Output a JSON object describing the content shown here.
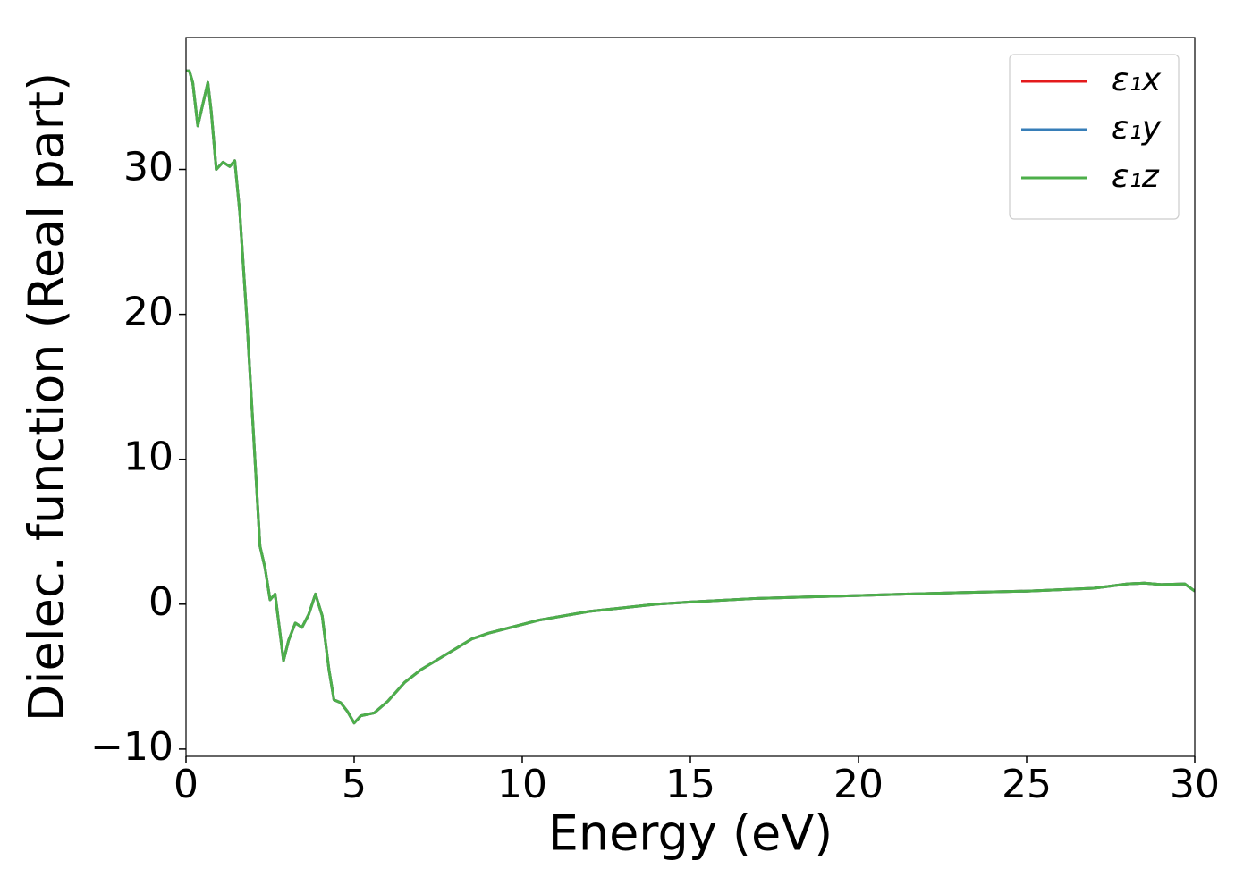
{
  "chart_data": {
    "type": "line",
    "xlabel": "Energy (eV)",
    "ylabel": "Dielec. function (Real part)",
    "x": [
      0,
      0.1,
      0.2,
      0.35,
      0.5,
      0.65,
      0.75,
      0.9,
      1.1,
      1.3,
      1.45,
      1.6,
      1.8,
      2.0,
      2.2,
      2.35,
      2.5,
      2.65,
      2.9,
      3.05,
      3.25,
      3.45,
      3.65,
      3.85,
      4.05,
      4.25,
      4.4,
      4.6,
      4.8,
      5.0,
      5.2,
      5.6,
      6.0,
      6.5,
      7.0,
      7.5,
      8.0,
      8.5,
      9.0,
      10.0,
      10.5,
      11,
      12,
      13,
      14,
      15,
      17,
      20,
      23,
      25,
      26,
      27,
      28,
      28.5,
      29,
      29.7,
      30
    ],
    "series": [
      {
        "name": "ε₁x",
        "color": "#e41a1c",
        "values": [
          36.8,
          36.8,
          36,
          33,
          34.5,
          36,
          34,
          30,
          30.5,
          30.2,
          30.6,
          27,
          20,
          12,
          4,
          2.5,
          0.3,
          0.7,
          -3.9,
          -2.5,
          -1.3,
          -1.6,
          -0.7,
          0.7,
          -0.8,
          -4.5,
          -6.6,
          -6.8,
          -7.4,
          -8.2,
          -7.7,
          -7.5,
          -6.7,
          -5.4,
          -4.5,
          -3.8,
          -3.1,
          -2.4,
          -2.0,
          -1.4,
          -1.1,
          -0.9,
          -0.5,
          -0.25,
          0,
          0.15,
          0.4,
          0.6,
          0.8,
          0.9,
          1.0,
          1.1,
          1.4,
          1.45,
          1.35,
          1.4,
          0.9
        ]
      },
      {
        "name": "ε₁y",
        "color": "#377eb8",
        "values": [
          36.8,
          36.8,
          36,
          33,
          34.5,
          36,
          34,
          30,
          30.5,
          30.2,
          30.6,
          27,
          20,
          12,
          4,
          2.5,
          0.3,
          0.7,
          -3.9,
          -2.5,
          -1.3,
          -1.6,
          -0.7,
          0.7,
          -0.8,
          -4.5,
          -6.6,
          -6.8,
          -7.4,
          -8.2,
          -7.7,
          -7.5,
          -6.7,
          -5.4,
          -4.5,
          -3.8,
          -3.1,
          -2.4,
          -2.0,
          -1.4,
          -1.1,
          -0.9,
          -0.5,
          -0.25,
          0,
          0.15,
          0.4,
          0.6,
          0.8,
          0.9,
          1.0,
          1.1,
          1.4,
          1.45,
          1.35,
          1.4,
          0.9
        ]
      },
      {
        "name": "ε₁z",
        "color": "#4daf4a",
        "values": [
          36.8,
          36.8,
          36,
          33,
          34.5,
          36,
          34,
          30,
          30.5,
          30.2,
          30.6,
          27,
          20,
          12,
          4,
          2.5,
          0.3,
          0.7,
          -3.9,
          -2.5,
          -1.3,
          -1.6,
          -0.7,
          0.7,
          -0.8,
          -4.5,
          -6.6,
          -6.8,
          -7.4,
          -8.2,
          -7.7,
          -7.5,
          -6.7,
          -5.4,
          -4.5,
          -3.8,
          -3.1,
          -2.4,
          -2.0,
          -1.4,
          -1.1,
          -0.9,
          -0.5,
          -0.25,
          0,
          0.15,
          0.4,
          0.6,
          0.8,
          0.9,
          1.0,
          1.1,
          1.4,
          1.45,
          1.35,
          1.4,
          0.9
        ]
      }
    ],
    "xlim": [
      0,
      30
    ],
    "xticks": [
      0,
      5,
      10,
      15,
      20,
      25,
      30
    ],
    "ylim": [
      -10.5,
      39.1
    ],
    "yticks": [
      {
        "value": -10,
        "label": "−10"
      },
      0,
      10,
      20,
      30
    ],
    "grid": false,
    "legend": "upper right"
  }
}
